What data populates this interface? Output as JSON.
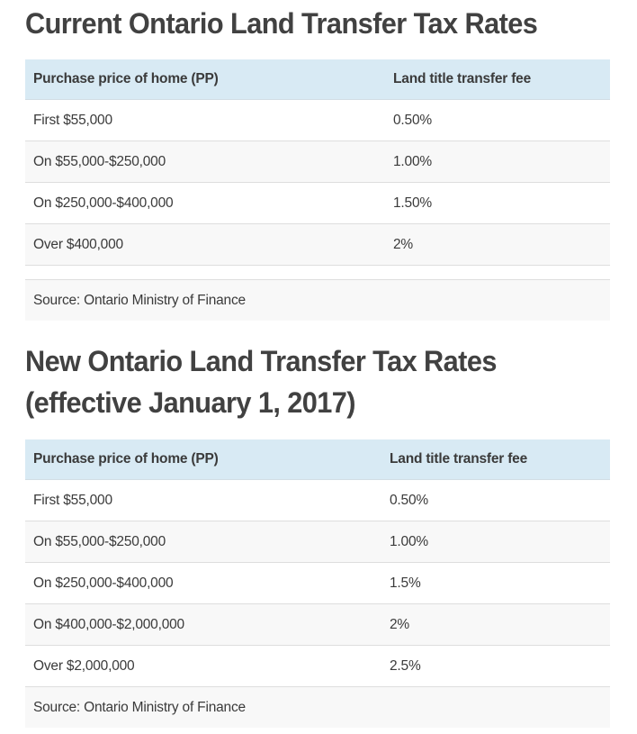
{
  "sections": [
    {
      "title": "Current Ontario Land Transfer Tax Rates",
      "table": {
        "headers": [
          "Purchase price of home (PP)",
          "Land title transfer fee"
        ],
        "rows": [
          [
            "First $55,000",
            "0.50%"
          ],
          [
            "On $55,000-$250,000",
            "1.00%"
          ],
          [
            "On $250,000-$400,000",
            "1.50%"
          ],
          [
            "Over $400,000",
            "2%"
          ]
        ],
        "source": "Source: Ontario Ministry of Finance"
      }
    },
    {
      "title_line1": "New Ontario Land Transfer Tax Rates",
      "title_line2": "(effective January 1, 2017)",
      "table": {
        "headers": [
          "Purchase price of home (PP)",
          "Land title transfer fee"
        ],
        "rows": [
          [
            "First $55,000",
            "0.50%"
          ],
          [
            "On $55,000-$250,000",
            "1.00%"
          ],
          [
            "On $250,000-$400,000",
            "1.5%"
          ],
          [
            "On $400,000-$2,000,000",
            "2%"
          ],
          [
            "Over $2,000,000",
            "2.5%"
          ]
        ],
        "source": "Source: Ontario Ministry of Finance"
      }
    }
  ],
  "colors": {
    "header_bg": "#d8eaf4",
    "stripe_bg": "#f8f8f8",
    "title_text": "#414141",
    "body_text": "#3a3a3a"
  }
}
